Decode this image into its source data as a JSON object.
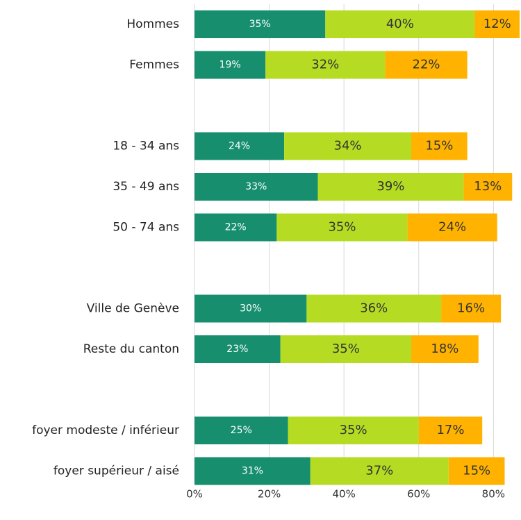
{
  "chart_data": {
    "type": "stacked-bar-horizontal",
    "categories": [
      "Hommes",
      "Femmes",
      null,
      "18 - 34 ans",
      "35 - 49 ans",
      "50 - 74 ans",
      null,
      "Ville de Genève",
      "Reste du canton",
      null,
      "foyer modeste / inférieur",
      "foyer supérieur / aisé"
    ],
    "series": [
      {
        "color": "#178f6f",
        "values": [
          35,
          19,
          null,
          24,
          33,
          22,
          null,
          30,
          23,
          null,
          25,
          31
        ],
        "value_labels": [
          "35%",
          "19%",
          null,
          "24%",
          "33%",
          "22%",
          null,
          "30%",
          "23%",
          null,
          "25%",
          "31%"
        ]
      },
      {
        "color": "#b5dc23",
        "values": [
          40,
          32,
          null,
          34,
          39,
          35,
          null,
          36,
          35,
          null,
          35,
          37
        ],
        "value_labels": [
          "40%",
          "32%",
          null,
          "34%",
          "39%",
          "35%",
          null,
          "36%",
          "35%",
          null,
          "35%",
          "37%"
        ]
      },
      {
        "color": "#ffb300",
        "values": [
          12,
          22,
          null,
          15,
          13,
          24,
          null,
          16,
          18,
          null,
          17,
          15
        ],
        "value_labels": [
          "12%",
          "22%",
          null,
          "15%",
          "13%",
          "24%",
          null,
          "16%",
          "18%",
          null,
          "17%",
          "15%"
        ]
      }
    ],
    "xlim": [
      0,
      87
    ],
    "xticks": [
      {
        "value": 0,
        "label": "0%"
      },
      {
        "value": 20,
        "label": "20%"
      },
      {
        "value": 40,
        "label": "40%"
      },
      {
        "value": 60,
        "label": "60%"
      },
      {
        "value": 80,
        "label": "80%"
      }
    ],
    "grid": true
  }
}
